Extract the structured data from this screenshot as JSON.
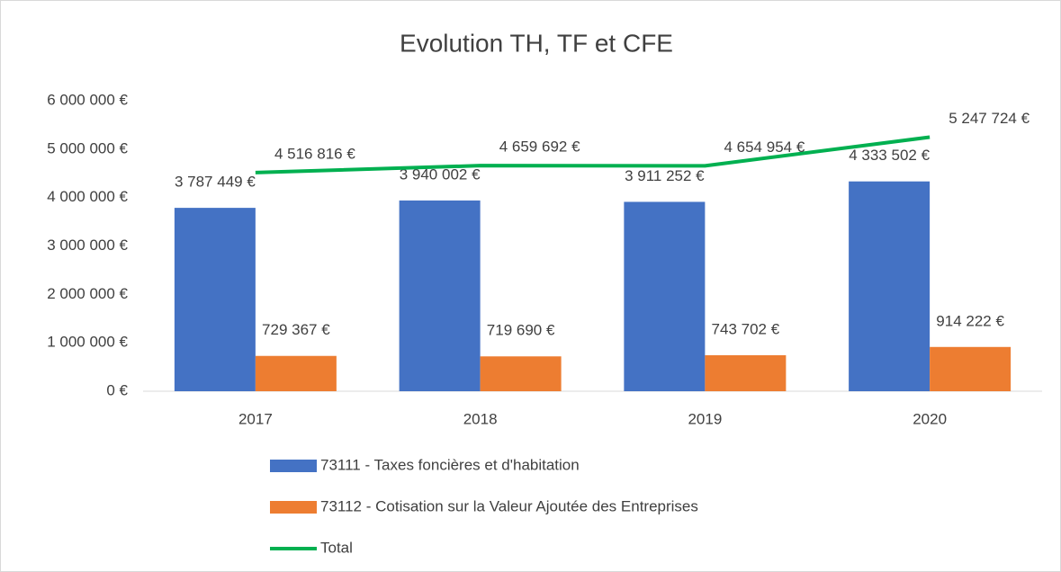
{
  "chart_data": {
    "type": "bar",
    "title": "Evolution TH, TF et CFE",
    "categories": [
      "2017",
      "2018",
      "2019",
      "2020"
    ],
    "series": [
      {
        "name": "73111 - Taxes foncières et d'habitation",
        "color": "#4472c4",
        "type": "bar",
        "values": [
          3787449,
          3940002,
          3911252,
          4333502
        ],
        "value_labels": [
          "3 787 449 €",
          "3 940 002 €",
          "3 911 252 €",
          "4 333 502 €"
        ]
      },
      {
        "name": "73112 - Cotisation sur la Valeur Ajoutée des Entreprises",
        "color": "#ed7d31",
        "type": "bar",
        "values": [
          729367,
          719690,
          743702,
          914222
        ],
        "value_labels": [
          "729 367 €",
          "719 690 €",
          "743 702 €",
          "914 222 €"
        ]
      },
      {
        "name": "Total",
        "color": "#00b050",
        "type": "line",
        "values": [
          4516816,
          4659692,
          4654954,
          5247724
        ],
        "value_labels": [
          "4 516 816 €",
          "4 659 692 €",
          "4 654 954 €",
          "5 247 724 €"
        ]
      }
    ],
    "ylim": [
      0,
      6000000
    ],
    "yticks": [
      {
        "value": 0,
        "label": "0 €"
      },
      {
        "value": 1000000,
        "label": "1 000 000 €"
      },
      {
        "value": 2000000,
        "label": "2 000 000 €"
      },
      {
        "value": 3000000,
        "label": "3 000 000 €"
      },
      {
        "value": 4000000,
        "label": "4 000 000 €"
      },
      {
        "value": 5000000,
        "label": "5 000 000 €"
      },
      {
        "value": 6000000,
        "label": "6 000 000 €"
      }
    ],
    "grid": false,
    "legend": "bottom"
  }
}
